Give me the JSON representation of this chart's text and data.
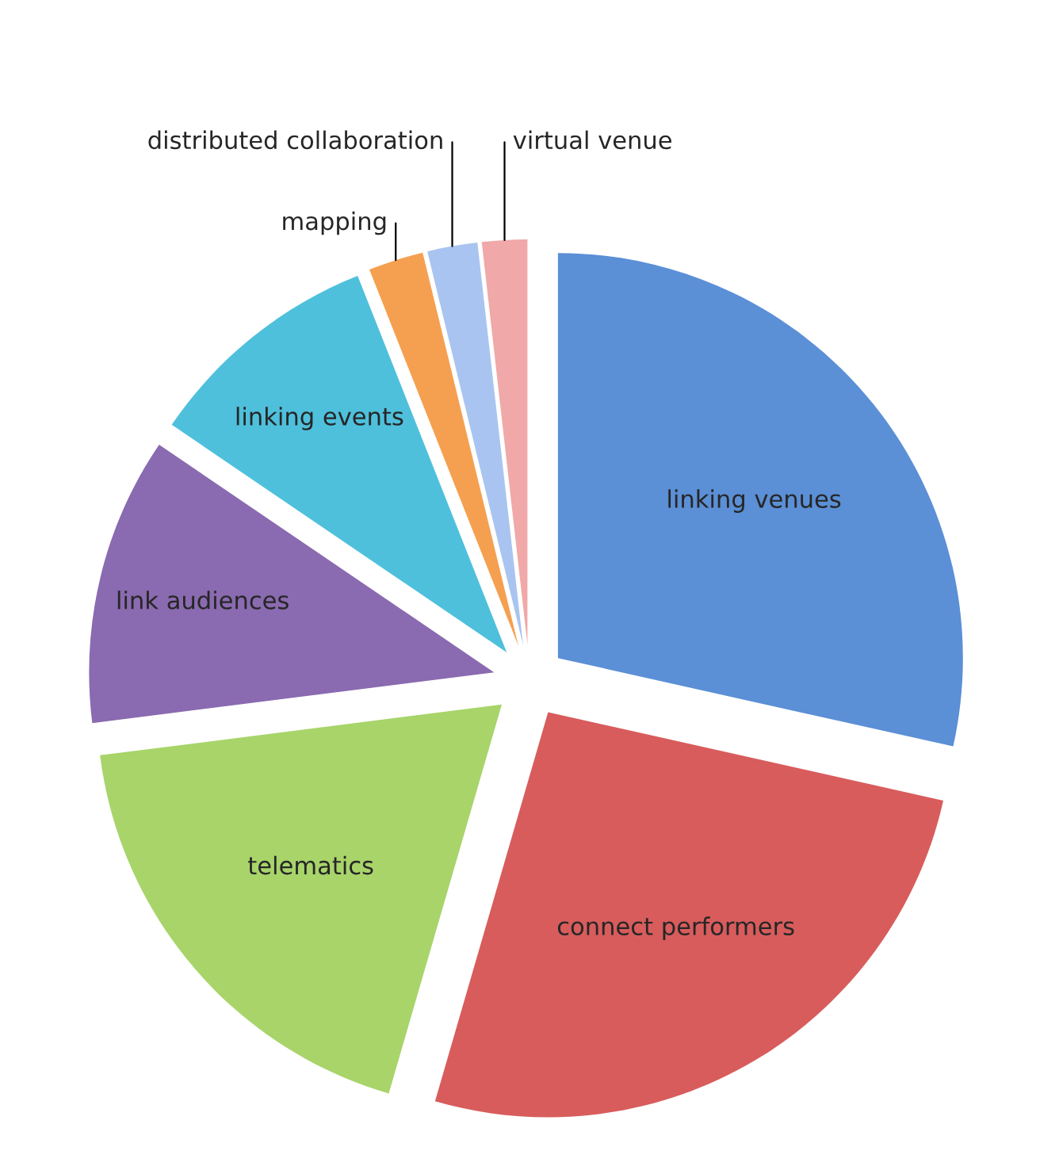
{
  "chart_data": {
    "type": "pie",
    "categories": [
      "linking venues",
      "connect performers",
      "telematics",
      "link audiences",
      "linking events",
      "mapping",
      "distributed collaboration",
      "virtual venue"
    ],
    "values": [
      28.5,
      26,
      18.5,
      11.5,
      9.5,
      2.2,
      2,
      1.8
    ],
    "colors": [
      "#5b8fd6",
      "#d85c5c",
      "#a8d46a",
      "#8a6ab0",
      "#4ec0dc",
      "#f5a050",
      "#a9c4f0",
      "#f0a8a8"
    ]
  }
}
